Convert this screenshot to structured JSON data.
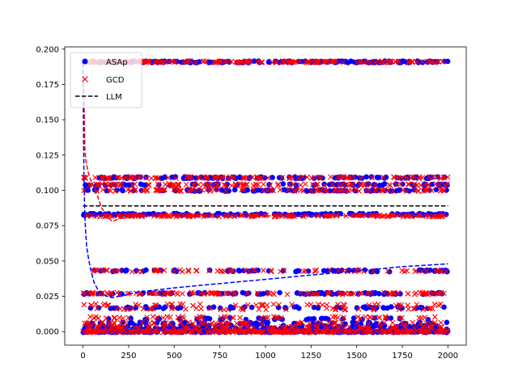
{
  "chart_data": {
    "type": "scatter",
    "title": "",
    "xlabel": "",
    "ylabel": "",
    "xlim": [
      -100,
      2100
    ],
    "ylim": [
      -0.0096,
      0.2016
    ],
    "x_ticks": [
      0,
      250,
      500,
      750,
      1000,
      1250,
      1500,
      1750,
      2000
    ],
    "x_tick_labels": [
      "0",
      "250",
      "500",
      "750",
      "1000",
      "1250",
      "1500",
      "1750",
      "2000"
    ],
    "y_ticks": [
      0.0,
      0.025,
      0.05,
      0.075,
      0.1,
      0.125,
      0.15,
      0.175,
      0.2
    ],
    "y_tick_labels": [
      "0.000",
      "0.025",
      "0.050",
      "0.075",
      "0.100",
      "0.125",
      "0.150",
      "0.175",
      "0.200"
    ],
    "grid": false,
    "legend_position": "top-left",
    "x_range": [
      0,
      2000
    ],
    "series": [
      {
        "name": "ASAp",
        "kind": "scatter",
        "marker": "circle",
        "color": "#0000ff",
        "levels": [
          0.0,
          0.002,
          0.004,
          0.006,
          0.009,
          0.017,
          0.027,
          0.043,
          0.083,
          0.1,
          0.104,
          0.109,
          0.191
        ],
        "level_weights": [
          22,
          10,
          6,
          4,
          3,
          5,
          8,
          5,
          12,
          8,
          8,
          8,
          12
        ]
      },
      {
        "name": "GCD",
        "kind": "scatter",
        "marker": "x",
        "color": "#ff0000",
        "levels": [
          0.0,
          0.003,
          0.006,
          0.01,
          0.016,
          0.019,
          0.027,
          0.043,
          0.082,
          0.1,
          0.104,
          0.109,
          0.191
        ],
        "level_weights": [
          20,
          8,
          5,
          4,
          3,
          4,
          8,
          5,
          12,
          8,
          8,
          8,
          12
        ]
      },
      {
        "name": "LLM",
        "kind": "line",
        "style": "dashed",
        "color": "#000000",
        "x": [
          0,
          2000
        ],
        "y": [
          0.089,
          0.089
        ]
      },
      {
        "kind": "line",
        "style": "dashed",
        "color": "#ff0000",
        "x": [
          0,
          5,
          10,
          15,
          20,
          30,
          40,
          50,
          60,
          80,
          100,
          130,
          160,
          200,
          260,
          350,
          500,
          700,
          1000,
          1300,
          1600,
          2000
        ],
        "y": [
          0.19,
          0.165,
          0.13,
          0.122,
          0.118,
          0.112,
          0.108,
          0.105,
          0.102,
          0.096,
          0.088,
          0.082,
          0.078,
          0.08,
          0.082,
          0.082,
          0.082,
          0.082,
          0.082,
          0.082,
          0.082,
          0.082
        ]
      },
      {
        "kind": "line",
        "style": "dashed",
        "color": "#0000ff",
        "x": [
          0,
          5,
          10,
          15,
          20,
          30,
          40,
          60,
          80,
          100,
          130,
          160,
          200,
          300,
          500,
          750,
          1000,
          1250,
          1500,
          1750,
          2000
        ],
        "y": [
          0.19,
          0.11,
          0.082,
          0.07,
          0.06,
          0.052,
          0.045,
          0.035,
          0.03,
          0.027,
          0.025,
          0.024,
          0.025,
          0.028,
          0.031,
          0.034,
          0.037,
          0.04,
          0.043,
          0.046,
          0.048
        ]
      }
    ]
  }
}
